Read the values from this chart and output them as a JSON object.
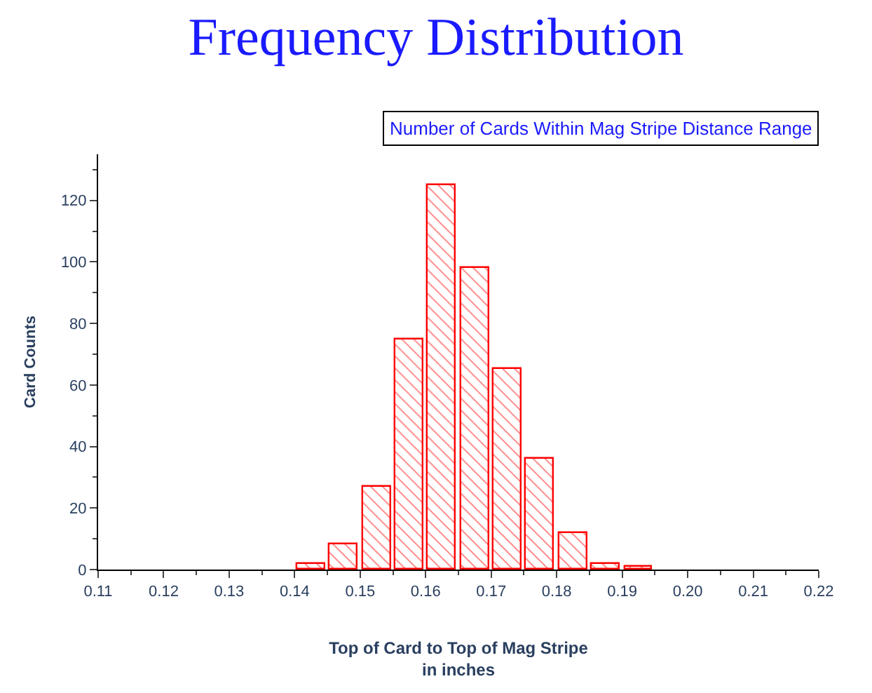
{
  "chart_data": {
    "type": "histogram",
    "title": "Frequency Distribution",
    "subtitle": "Number of Cards Within Mag Stripe Distance Range",
    "xlabel": "Top of Card to Top of Mag Stripe\nin inches",
    "ylabel": "Card Counts",
    "bins": [
      0.14,
      0.145,
      0.15,
      0.155,
      0.16,
      0.165,
      0.17,
      0.175,
      0.18,
      0.185,
      0.19,
      0.195
    ],
    "values": [
      2,
      8,
      27,
      75,
      125,
      98,
      65,
      36,
      12,
      2,
      1
    ],
    "color": "#ff0000",
    "xlim": [
      0.11,
      0.22
    ],
    "xticks": [
      {
        "value": 0.11,
        "label": "0.11"
      },
      {
        "value": 0.12,
        "label": "0.12"
      },
      {
        "value": 0.13,
        "label": "0.13"
      },
      {
        "value": 0.14,
        "label": "0.14"
      },
      {
        "value": 0.15,
        "label": "0.15"
      },
      {
        "value": 0.16,
        "label": "0.16"
      },
      {
        "value": 0.17,
        "label": "0.17"
      },
      {
        "value": 0.18,
        "label": "0.18"
      },
      {
        "value": 0.19,
        "label": "0.19"
      },
      {
        "value": 0.2,
        "label": "0.20"
      },
      {
        "value": 0.21,
        "label": "0.21"
      },
      {
        "value": 0.22,
        "label": "0.22"
      }
    ],
    "ylim": [
      0,
      135
    ],
    "yticks": [
      0,
      20,
      40,
      60,
      80,
      100,
      120
    ],
    "legend": false
  }
}
